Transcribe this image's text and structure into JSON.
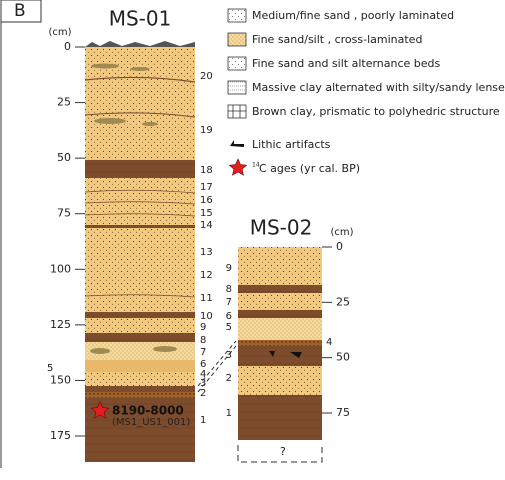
{
  "panel_label": "B",
  "columns": [
    {
      "title": "MS-01",
      "unit": "(cm)",
      "depth_ticks": [
        0,
        25,
        50,
        75,
        100,
        125,
        150,
        175
      ],
      "units": [
        "20",
        "19",
        "18",
        "17",
        "16",
        "15",
        "14",
        "13",
        "12",
        "11",
        "10",
        "9",
        "8",
        "7",
        "6",
        "5",
        "4",
        "3",
        "2",
        "1"
      ]
    },
    {
      "title": "MS-02",
      "unit": "(cm)",
      "depth_ticks": [
        0,
        25,
        50,
        75
      ],
      "units": [
        "9",
        "8",
        "7",
        "6",
        "5",
        "4",
        "3",
        "2",
        "1"
      ]
    }
  ],
  "legend": {
    "items": [
      {
        "label": "Medium/fine sand , poorly laminated"
      },
      {
        "label": "Fine sand/silt , cross-laminated"
      },
      {
        "label": "Fine sand and silt alternance beds"
      },
      {
        "label": "Massive clay alternated with silty/sandy lenses"
      },
      {
        "label": "Brown clay, prismatic to polyhedric structure"
      },
      {
        "label": "Lithic artifacts"
      },
      {
        "label": "C ages (yr cal. BP)",
        "superscript": "14"
      }
    ]
  },
  "date": {
    "age": "8190-8000",
    "sample": "(MS1_US1_001)"
  },
  "unknown": "?"
}
